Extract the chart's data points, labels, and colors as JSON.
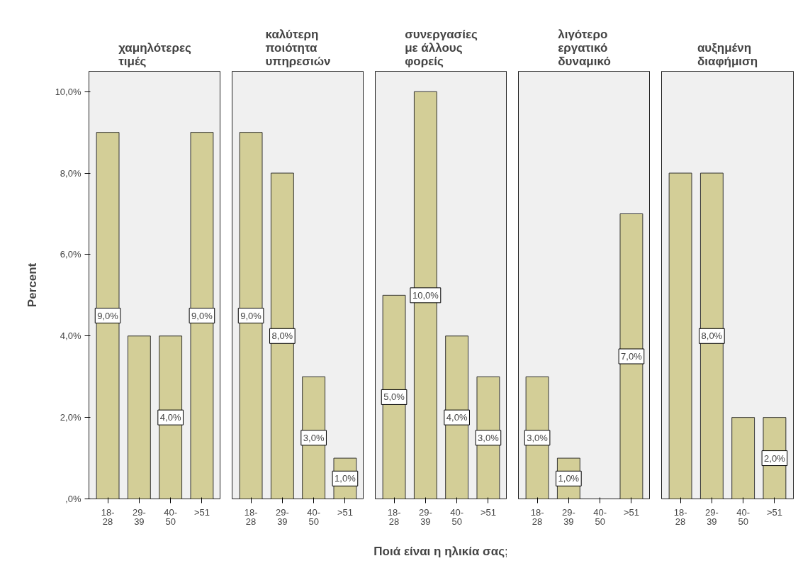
{
  "chart_data": [
    {
      "type": "bar",
      "title": "χαμηλότερες τιμές",
      "ylabel": "Percent",
      "categories": [
        "18-28",
        "29-39",
        "40-50",
        ">51"
      ],
      "values": [
        9,
        4,
        4,
        9
      ],
      "value_labels": [
        "9,0%",
        null,
        "4,0%",
        "9,0%"
      ],
      "color": "#d3ce97",
      "ylim": [
        0,
        10.5
      ],
      "yticks": [
        {
          "value": 0,
          "label": ",0%"
        },
        {
          "value": 2,
          "label": "2,0%"
        },
        {
          "value": 4,
          "label": "4,0%"
        },
        {
          "value": 6,
          "label": "6,0%"
        },
        {
          "value": 8,
          "label": "8,0%"
        },
        {
          "value": 10,
          "label": "10,0%"
        }
      ]
    },
    {
      "type": "bar",
      "title": "καλύτερη ποιότητα υπηρεσιών",
      "categories": [
        "18-28",
        "29-39",
        "40-50",
        ">51"
      ],
      "values": [
        9,
        8,
        3,
        1
      ],
      "value_labels": [
        "9,0%",
        "8,0%",
        "3,0%",
        "1,0%"
      ],
      "color": "#d3ce97",
      "ylim": [
        0,
        10.5
      ],
      "tick_labels": "x"
    },
    {
      "type": "bar",
      "title": "συνεργασίες με άλλους φορείς",
      "xlabel": "Ποιά είναι η ηλικία σας;",
      "categories": [
        "18-28",
        "29-39",
        "40-50",
        ">51"
      ],
      "values": [
        5,
        10,
        4,
        3
      ],
      "value_labels": [
        "5,0%",
        "10,0%",
        "4,0%",
        "3,0%"
      ],
      "color": "#d3ce97",
      "ylim": [
        0,
        10.5
      ],
      "tick_labels": "x"
    },
    {
      "type": "bar",
      "title": "λιγότερο εργατικό δυναμικό",
      "categories": [
        "18-28",
        "29-39",
        "40-50",
        ">51"
      ],
      "values": [
        3,
        1,
        0,
        7
      ],
      "value_labels": [
        "3,0%",
        "1,0%",
        null,
        "7,0%"
      ],
      "color": "#d3ce97",
      "ylim": [
        0,
        10.5
      ],
      "tick_labels": "x"
    },
    {
      "type": "bar",
      "title": "αυξημένη διαφήμιση",
      "categories": [
        "18-28",
        "29-39",
        "40-50",
        ">51"
      ],
      "values": [
        8,
        8,
        2,
        2
      ],
      "value_labels": [
        null,
        "8,0%",
        null,
        "2,0%"
      ],
      "color": "#d3ce97",
      "ylim": [
        0,
        10.5
      ],
      "tick_labels": "x"
    }
  ]
}
